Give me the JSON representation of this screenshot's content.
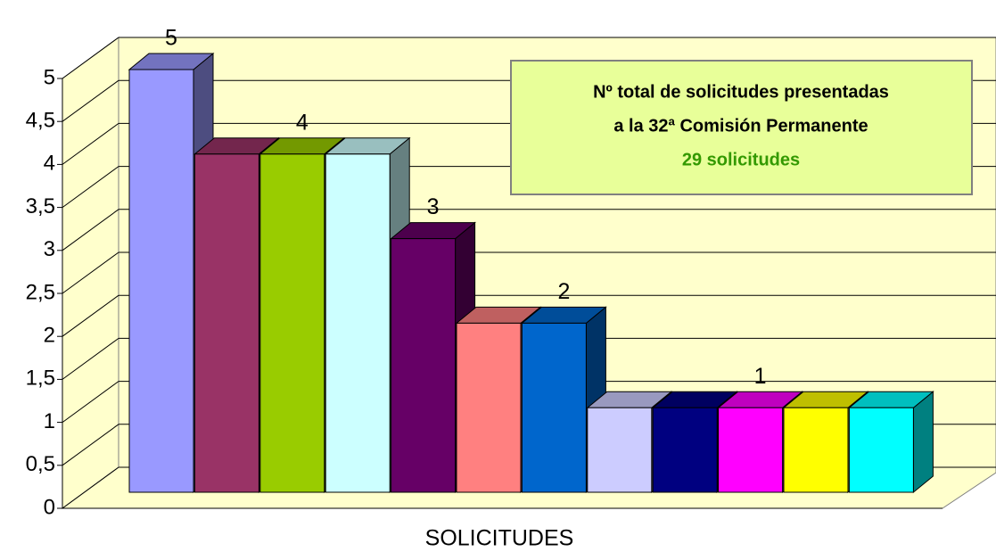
{
  "chart_data": {
    "type": "bar3d",
    "categories": [
      "SOLICITUDES"
    ],
    "series": [
      {
        "color": "#9999ff",
        "values": [
          5
        ],
        "show_label": true
      },
      {
        "color": "#993366",
        "values": [
          4
        ]
      },
      {
        "color": "#99cc00",
        "values": [
          4
        ],
        "show_label": true
      },
      {
        "color": "#ccffff",
        "values": [
          4
        ]
      },
      {
        "color": "#660066",
        "values": [
          3
        ],
        "show_label": true
      },
      {
        "color": "#ff8080",
        "values": [
          2
        ]
      },
      {
        "color": "#0066cc",
        "values": [
          2
        ],
        "show_label": true
      },
      {
        "color": "#ccccff",
        "values": [
          1
        ]
      },
      {
        "color": "#000080",
        "values": [
          1
        ]
      },
      {
        "color": "#ff00ff",
        "values": [
          1
        ],
        "show_label": true
      },
      {
        "color": "#ffff00",
        "values": [
          1
        ]
      },
      {
        "color": "#00ffff",
        "values": [
          1
        ]
      }
    ],
    "ylim": [
      0,
      5
    ],
    "yticks": [
      0,
      {
        "value": 0.5,
        "label": "0,5"
      },
      1,
      {
        "value": 1.5,
        "label": "1,5"
      },
      2,
      {
        "value": 2.5,
        "label": "2,5"
      },
      3,
      {
        "value": 3.5,
        "label": "3,5"
      },
      4,
      {
        "value": 4.5,
        "label": "4,5"
      },
      5
    ],
    "grid": true,
    "wall_color": "#ffffcc",
    "annotation": {
      "lines": [
        "Nº total de solicitudes presentadas",
        "a la 32ª Comisión Permanente",
        "29 solicitudes"
      ],
      "color": "#e8ff99",
      "highlight_color": "#339900"
    }
  }
}
